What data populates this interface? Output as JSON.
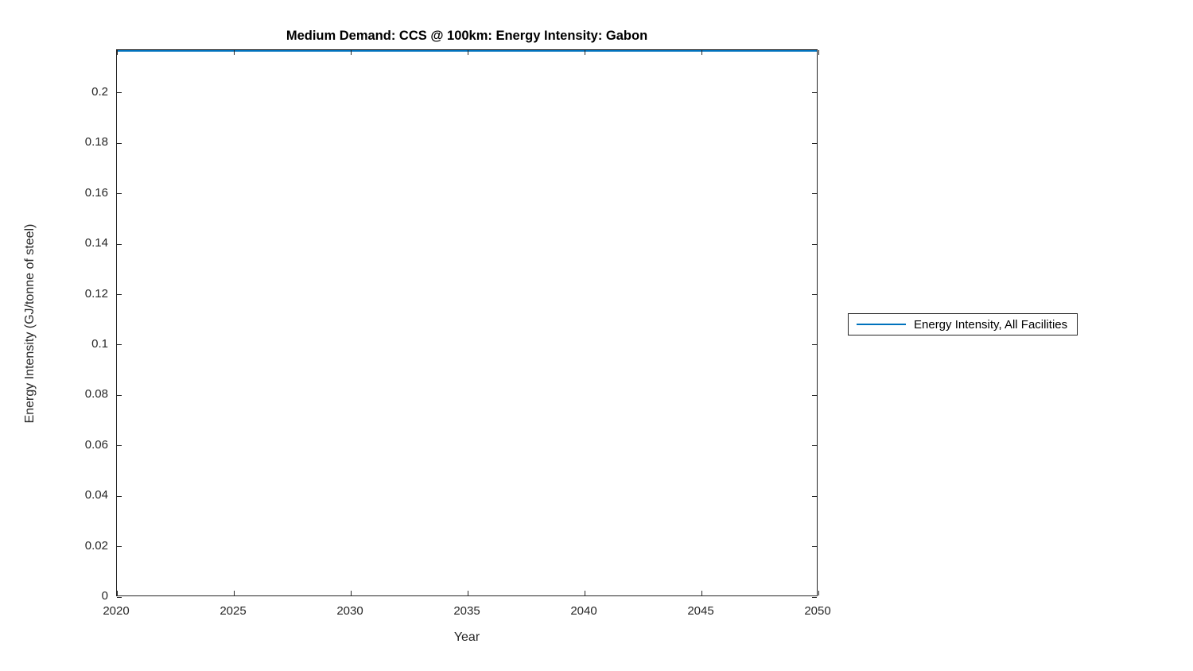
{
  "chart_data": {
    "type": "line",
    "title": "Medium Demand: CCS @ 100km: Energy Intensity: Gabon",
    "xlabel": "Year",
    "ylabel": "Energy Intensity (GJ/tonne of steel)",
    "xlim": [
      2020,
      2050
    ],
    "ylim": [
      0,
      0.217
    ],
    "x_ticks": [
      2020,
      2025,
      2030,
      2035,
      2040,
      2045,
      2050
    ],
    "x_tick_labels": [
      "2020",
      "2025",
      "2030",
      "2035",
      "2040",
      "2045",
      "2050"
    ],
    "y_ticks": [
      0,
      0.02,
      0.04,
      0.06,
      0.08,
      0.1,
      0.12,
      0.14,
      0.16,
      0.18,
      0.2
    ],
    "y_tick_labels": [
      "0",
      "0.02",
      "0.04",
      "0.06",
      "0.08",
      "0.1",
      "0.12",
      "0.14",
      "0.16",
      "0.18",
      "0.2"
    ],
    "grid": false,
    "legend_position": "right-outside",
    "series": [
      {
        "name": "Energy Intensity, All Facilities",
        "color": "#0072BD",
        "x": [
          2020,
          2025,
          2030,
          2035,
          2040,
          2045,
          2050
        ],
        "values": [
          0.217,
          0.217,
          0.217,
          0.217,
          0.217,
          0.217,
          0.217
        ]
      }
    ]
  }
}
